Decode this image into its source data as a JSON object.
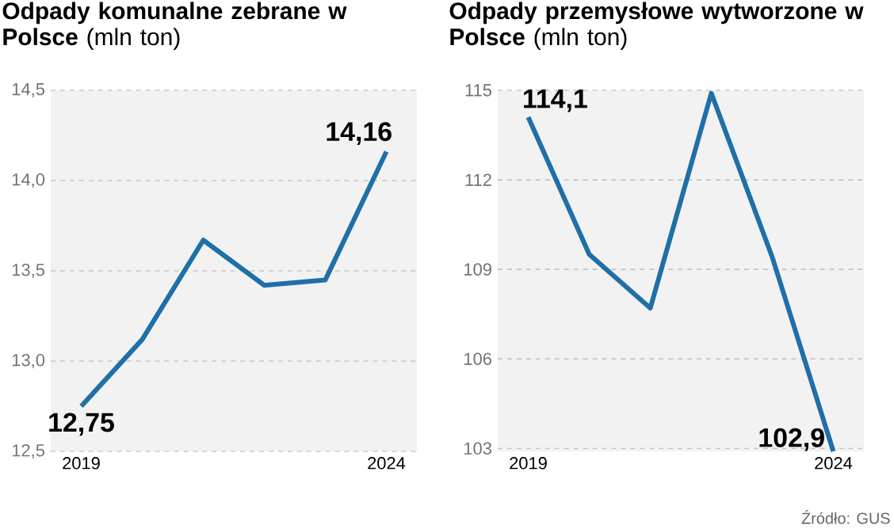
{
  "chart_data": [
    {
      "type": "line",
      "title": "**Odpady komunalne zebrane w Polsce** (mln ton)",
      "x": [
        2019,
        2020,
        2021,
        2022,
        2023,
        2024
      ],
      "values": [
        12.75,
        13.12,
        13.67,
        13.42,
        13.45,
        14.16
      ],
      "value_labels": [
        "12,75",
        null,
        null,
        null,
        null,
        "14,16"
      ],
      "color": "#1f6fa8",
      "xlim": [
        2018.5,
        2024.5
      ],
      "xticks": [
        2019,
        2024
      ],
      "ylim": [
        12.5,
        14.5
      ],
      "yticks": [
        {
          "value": 12.5,
          "label": "12,5"
        },
        {
          "value": 13.0,
          "label": "13,0"
        },
        {
          "value": 13.5,
          "label": "13,5"
        },
        {
          "value": 14.0,
          "label": "14,0"
        },
        {
          "value": 14.5,
          "label": "14,5"
        }
      ],
      "grid": "y"
    },
    {
      "type": "line",
      "title": "**Odpady przemysłowe wytworzone w Polsce** (mln ton)",
      "x": [
        2019,
        2020,
        2021,
        2022,
        2023,
        2024
      ],
      "values": [
        114.1,
        109.5,
        107.7,
        114.9,
        109.4,
        102.9
      ],
      "value_labels": [
        "114,1",
        null,
        null,
        null,
        null,
        "102,9"
      ],
      "color": "#1f6fa8",
      "xlim": [
        2018.5,
        2024.5
      ],
      "xticks": [
        2019,
        2024
      ],
      "ylim": [
        102.9,
        115
      ],
      "yticks": [
        103,
        106,
        109,
        112,
        115
      ],
      "grid": "y",
      "annotations": [
        "Źródło: GUS"
      ]
    }
  ]
}
